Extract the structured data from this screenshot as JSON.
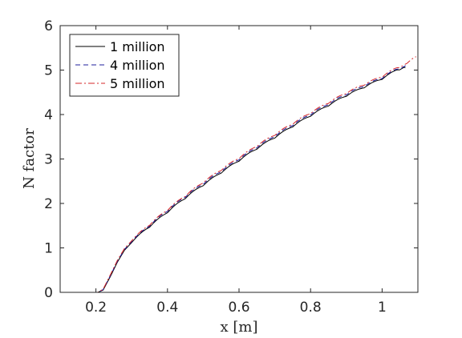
{
  "chart_data": {
    "type": "line",
    "xlabel": "x [m]",
    "ylabel": "N factor",
    "xlim": [
      0.1,
      1.1
    ],
    "ylim": [
      0,
      6
    ],
    "xticks": [
      0.2,
      0.4,
      0.6,
      0.8,
      1.0
    ],
    "xtick_labels": [
      "0.2",
      "0.4",
      "0.6",
      "0.8",
      "1"
    ],
    "yticks": [
      0,
      1,
      2,
      3,
      4,
      5,
      6
    ],
    "ytick_labels": [
      "0",
      "1",
      "2",
      "3",
      "4",
      "5",
      "6"
    ],
    "grid": false,
    "legend_position": "top-left",
    "series": [
      {
        "name": "1 million",
        "color": "#000000",
        "dash": "solid",
        "x": [
          0.19,
          0.205,
          0.22,
          0.24,
          0.26,
          0.28,
          0.3,
          0.34,
          0.38,
          0.42,
          0.46,
          0.5,
          0.55,
          0.6,
          0.65,
          0.7,
          0.75,
          0.8,
          0.85,
          0.9,
          0.95,
          1.0,
          1.04,
          1.065
        ],
        "y": [
          0.0,
          0.0,
          0.05,
          0.35,
          0.68,
          0.95,
          1.12,
          1.4,
          1.66,
          1.92,
          2.17,
          2.4,
          2.68,
          2.95,
          3.22,
          3.47,
          3.72,
          3.96,
          4.19,
          4.41,
          4.6,
          4.79,
          4.98,
          5.05
        ]
      },
      {
        "name": "4 million",
        "color": "#1f1f9e",
        "dash": "dashed",
        "x": [
          0.19,
          0.205,
          0.22,
          0.24,
          0.26,
          0.28,
          0.3,
          0.34,
          0.38,
          0.42,
          0.46,
          0.5,
          0.55,
          0.6,
          0.65,
          0.7,
          0.75,
          0.8,
          0.85,
          0.9,
          0.95,
          1.0,
          1.04,
          1.07
        ],
        "y": [
          0.0,
          0.0,
          0.06,
          0.37,
          0.7,
          0.97,
          1.14,
          1.42,
          1.69,
          1.95,
          2.2,
          2.43,
          2.71,
          2.98,
          3.25,
          3.5,
          3.75,
          3.99,
          4.22,
          4.44,
          4.63,
          4.81,
          5.0,
          5.08
        ]
      },
      {
        "name": "5 million",
        "color": "#d62728",
        "dash": "dashdot",
        "x": [
          0.19,
          0.205,
          0.22,
          0.24,
          0.26,
          0.28,
          0.3,
          0.34,
          0.38,
          0.42,
          0.46,
          0.5,
          0.55,
          0.6,
          0.65,
          0.7,
          0.75,
          0.8,
          0.85,
          0.9,
          0.95,
          1.0,
          1.04,
          1.07,
          1.095
        ],
        "y": [
          0.0,
          0.0,
          0.07,
          0.39,
          0.72,
          0.99,
          1.16,
          1.44,
          1.71,
          1.97,
          2.22,
          2.46,
          2.74,
          3.01,
          3.28,
          3.53,
          3.78,
          4.02,
          4.25,
          4.47,
          4.66,
          4.84,
          5.03,
          5.12,
          5.3
        ]
      }
    ]
  }
}
